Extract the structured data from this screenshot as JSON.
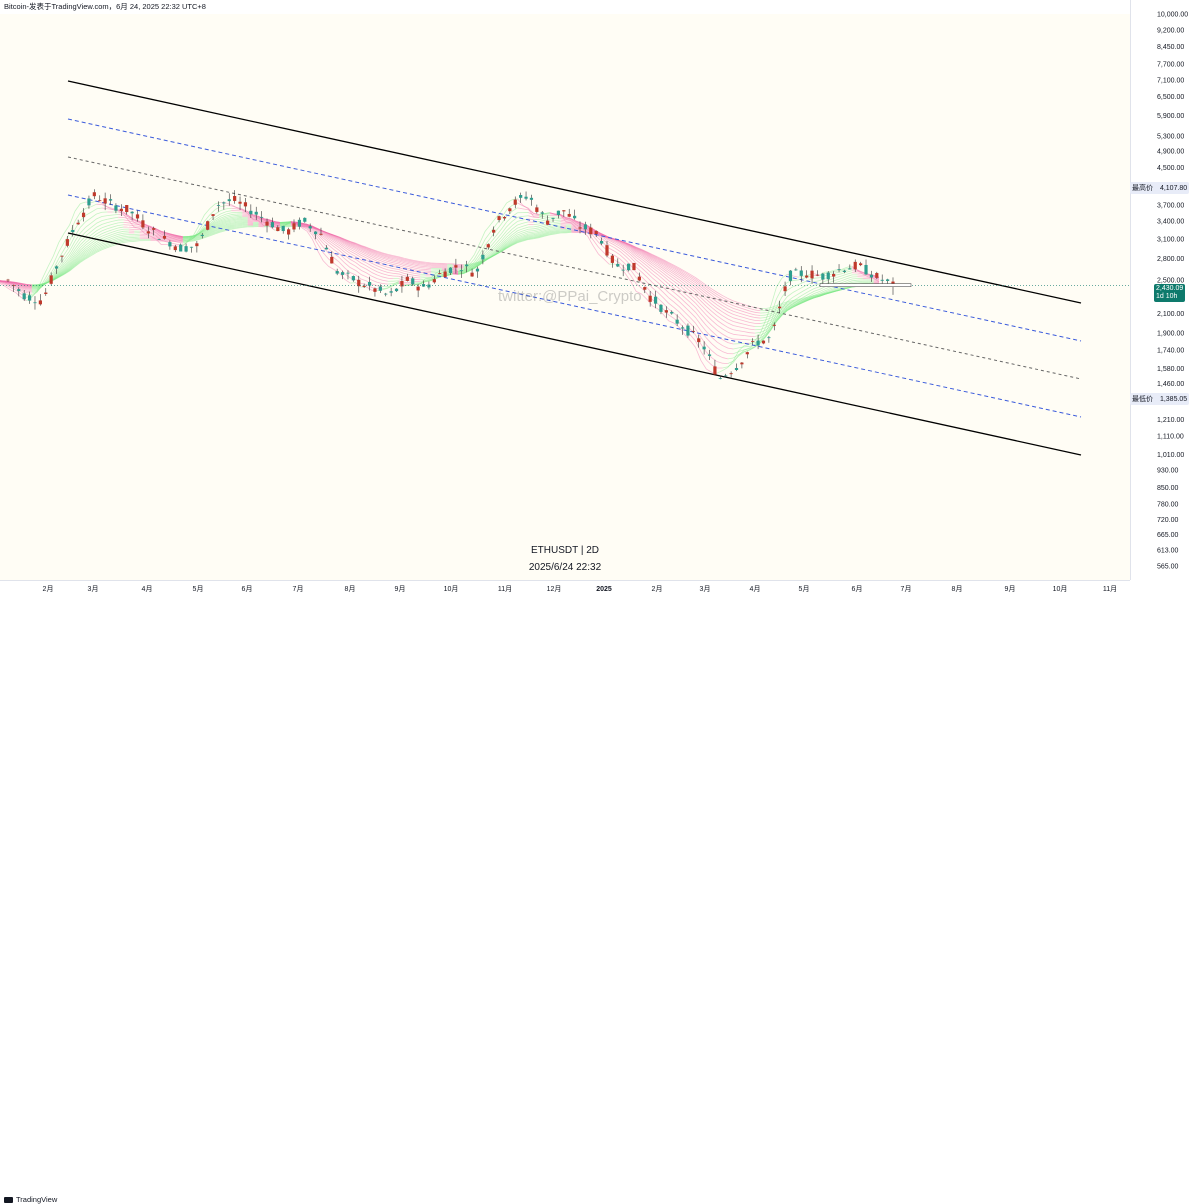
{
  "header": {
    "title": "Bitcoin-发表于TradingView.com，6月 24, 2025 22:32 UTC+8"
  },
  "symbol": "ETHUSDT | 2D",
  "timestamp": "2025/6/24 22:32",
  "watermark": "twitter:@PPai_Crypto",
  "brand": "TradingView",
  "colors": {
    "up": "#2e9e8e",
    "down": "#c0392b",
    "channel": "#000000",
    "dash_blue": "#3b5bdb",
    "dash_gray": "#666666",
    "ribbon_bull": "#7ee887",
    "ribbon_bear": "#f06aa8",
    "badge": "#0e7a6c"
  },
  "badges": {
    "high": {
      "label": "最高价",
      "value": "4,107.80"
    },
    "current": {
      "value": "2,430.09",
      "countdown": "1d 10h"
    },
    "low": {
      "label": "最低价",
      "value": "1,385.05"
    }
  },
  "chart_data": {
    "type": "candlestick",
    "symbol": "ETHUSDT",
    "interval": "2D",
    "scale": "log",
    "y_ticks": [
      "10,000.00",
      "9,200.00",
      "8,450.00",
      "7,700.00",
      "7,100.00",
      "6,500.00",
      "5,900.00",
      "5,300.00",
      "4,900.00",
      "4,500.00",
      "4,100.00",
      "3,700.00",
      "3,400.00",
      "3,100.00",
      "2,800.00",
      "2,500.00",
      "2,100.00",
      "1,900.00",
      "1,740.00",
      "1,580.00",
      "1,460.00",
      "1,335.00",
      "1,210.00",
      "1,110.00",
      "1,010.00",
      "930.00",
      "850.00",
      "780.00",
      "720.00",
      "665.00",
      "613.00",
      "565.00"
    ],
    "x_ticks": [
      "2月",
      "3月",
      "4月",
      "5月",
      "6月",
      "7月",
      "8月",
      "9月",
      "10月",
      "11月",
      "12月",
      "2025",
      "2月",
      "3月",
      "4月",
      "5月",
      "6月",
      "7月",
      "8月",
      "9月",
      "10月",
      "11月"
    ],
    "ylim": [
      550,
      10000
    ],
    "last_price": 2430.09,
    "high": 4107.8,
    "low": 1385.05,
    "series": [
      {
        "name": "ETHUSDT",
        "points": [
          {
            "t": 0.0,
            "p": 2500
          },
          {
            "t": 0.4,
            "p": 2300
          },
          {
            "t": 0.8,
            "p": 2250
          },
          {
            "t": 1.2,
            "p": 2800
          },
          {
            "t": 1.6,
            "p": 3400
          },
          {
            "t": 2.0,
            "p": 3900
          },
          {
            "t": 2.4,
            "p": 3700
          },
          {
            "t": 2.8,
            "p": 3600
          },
          {
            "t": 3.2,
            "p": 3300
          },
          {
            "t": 3.6,
            "p": 3100
          },
          {
            "t": 4.0,
            "p": 2950
          },
          {
            "t": 4.4,
            "p": 3000
          },
          {
            "t": 4.8,
            "p": 3700
          },
          {
            "t": 5.2,
            "p": 3800
          },
          {
            "t": 5.6,
            "p": 3600
          },
          {
            "t": 6.0,
            "p": 3400
          },
          {
            "t": 6.4,
            "p": 3200
          },
          {
            "t": 6.8,
            "p": 3400
          },
          {
            "t": 7.2,
            "p": 3200
          },
          {
            "t": 7.6,
            "p": 2600
          },
          {
            "t": 8.0,
            "p": 2500
          },
          {
            "t": 8.4,
            "p": 2400
          },
          {
            "t": 8.8,
            "p": 2300
          },
          {
            "t": 9.2,
            "p": 2500
          },
          {
            "t": 9.6,
            "p": 2400
          },
          {
            "t": 10.0,
            "p": 2600
          },
          {
            "t": 10.4,
            "p": 2700
          },
          {
            "t": 10.8,
            "p": 2600
          },
          {
            "t": 11.2,
            "p": 3300
          },
          {
            "t": 11.6,
            "p": 3700
          },
          {
            "t": 12.0,
            "p": 3900
          },
          {
            "t": 12.4,
            "p": 3400
          },
          {
            "t": 12.8,
            "p": 3600
          },
          {
            "t": 13.2,
            "p": 3300
          },
          {
            "t": 13.6,
            "p": 3200
          },
          {
            "t": 14.0,
            "p": 2700
          },
          {
            "t": 14.4,
            "p": 2700
          },
          {
            "t": 14.8,
            "p": 2300
          },
          {
            "t": 15.2,
            "p": 2100
          },
          {
            "t": 15.6,
            "p": 1950
          },
          {
            "t": 16.0,
            "p": 1800
          },
          {
            "t": 16.4,
            "p": 1500
          },
          {
            "t": 16.8,
            "p": 1600
          },
          {
            "t": 17.2,
            "p": 1800
          },
          {
            "t": 17.6,
            "p": 1850
          },
          {
            "t": 18.0,
            "p": 2550
          },
          {
            "t": 18.4,
            "p": 2600
          },
          {
            "t": 18.8,
            "p": 2550
          },
          {
            "t": 19.2,
            "p": 2650
          },
          {
            "t": 19.6,
            "p": 2700
          },
          {
            "t": 20.0,
            "p": 2550
          },
          {
            "t": 20.4,
            "p": 2430
          }
        ]
      }
    ]
  }
}
